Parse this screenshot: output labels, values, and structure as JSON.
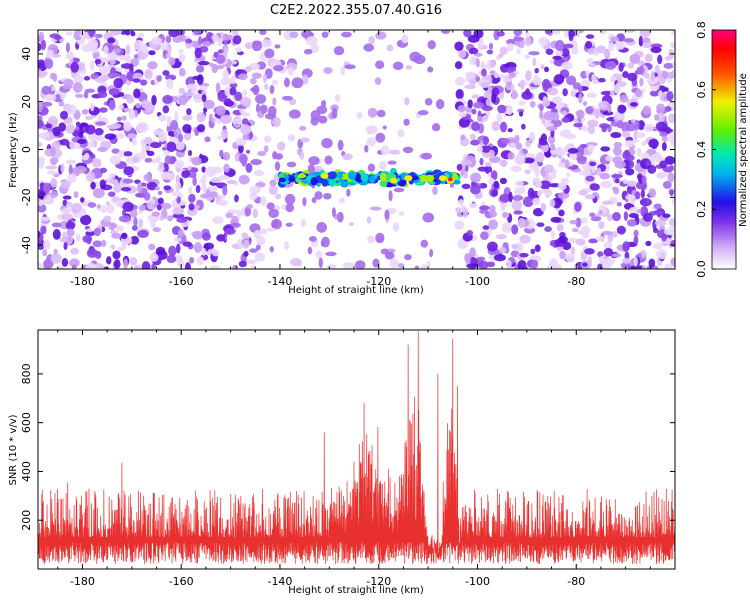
{
  "figure": {
    "title": "C2E2.2022.355.07.40.G16"
  },
  "chart_data": [
    {
      "type": "heatmap",
      "xlabel": "Height of straight line (km)",
      "ylabel": "Frequency (Hz)",
      "xlim": [
        -189,
        -60
      ],
      "ylim": [
        -50,
        50
      ],
      "xticks": [
        -180,
        -160,
        -140,
        -120,
        -100,
        -80
      ],
      "yticks": [
        -40,
        -20,
        0,
        20,
        40
      ],
      "colorbar": {
        "label": "Normalized spectral amplitude",
        "range": [
          0.0,
          0.8
        ],
        "ticks": [
          "0.0",
          "0.2",
          "0.4",
          "0.6",
          "0.8"
        ],
        "colormap": "white-purple-blue-cyan-green-yellow-red-magenta"
      },
      "features": [
        {
          "x_range": [
            -140,
            -104
          ],
          "frequency_center": -12,
          "peak_amplitude": 0.7
        }
      ],
      "gaps_x_ranges": [
        [
          -146,
          -104
        ]
      ]
    },
    {
      "type": "line",
      "xlabel": "Height of straight line (km)",
      "ylabel": "SNR (10 * v/v)",
      "xlim": [
        -189,
        -60
      ],
      "ylim": [
        0,
        980
      ],
      "xticks": [
        -180,
        -160,
        -140,
        -120,
        -100,
        -80
      ],
      "yticks": [
        200,
        400,
        600,
        800
      ],
      "series": [
        {
          "color": "#e8302f",
          "baseline": 130,
          "typical_max": 330,
          "peaks": [
            {
              "x": -183,
              "y": 355
            },
            {
              "x": -172,
              "y": 435
            },
            {
              "x": -131,
              "y": 560
            },
            {
              "x": -123,
              "y": 680
            },
            {
              "x": -114,
              "y": 920
            },
            {
              "x": -112,
              "y": 975
            },
            {
              "x": -108,
              "y": 800
            },
            {
              "x": -105,
              "y": 945
            },
            {
              "x": -104,
              "y": 750
            }
          ]
        }
      ]
    }
  ]
}
